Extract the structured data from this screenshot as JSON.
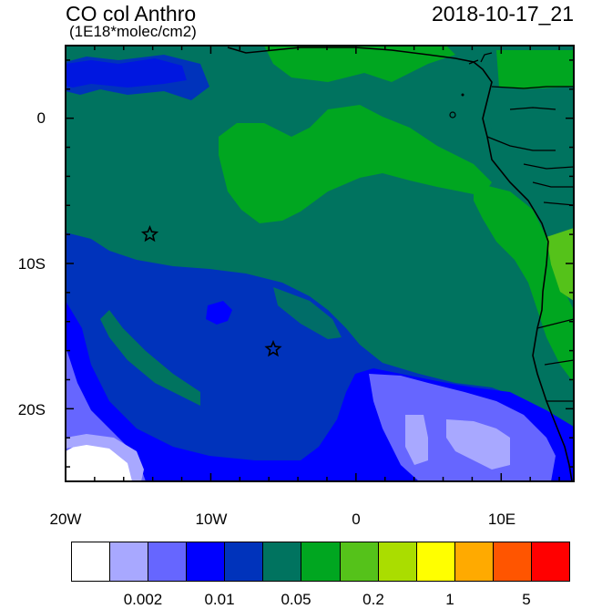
{
  "header": {
    "title": "CO col Anthro",
    "subtitle": "(1E18*molec/cm2)",
    "timestamp": "2018-10-17_21"
  },
  "map": {
    "lat_labels": [
      "0",
      "10S",
      "20S"
    ],
    "lon_labels": [
      "20W",
      "10W",
      "0",
      "10E"
    ],
    "markers": [
      {
        "name": "star-marker-1",
        "lon": -14.2,
        "lat": -8.0
      },
      {
        "name": "star-marker-2",
        "lon": -5.7,
        "lat": -15.9
      }
    ],
    "colors": {
      "level_002": "#a8a8ff",
      "level_003": "#6666ff",
      "level_005": "#0000ff",
      "level_01": "#0033bb",
      "level_05": "#00735f",
      "level_1": "#00a620",
      "level_2": "#55c21a",
      "land_outline": "#000000"
    }
  },
  "colorbar": {
    "swatches": [
      "#ffffff",
      "#a8a8ff",
      "#6666ff",
      "#0000ff",
      "#0033bb",
      "#00735f",
      "#00a620",
      "#55c21a",
      "#aadd00",
      "#ffff00",
      "#ffaa00",
      "#ff5500",
      "#ff0000"
    ],
    "labels": [
      "0.002",
      "0.01",
      "0.05",
      "0.2",
      "1",
      "5"
    ]
  }
}
